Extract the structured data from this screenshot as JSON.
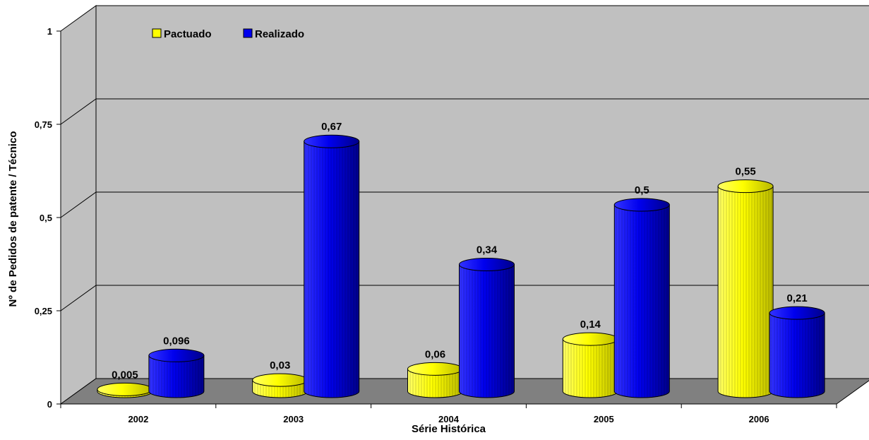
{
  "chart_data": {
    "type": "bar",
    "title": "",
    "xlabel": "Série Histórica",
    "ylabel": "Nº de Pedidos de patente / Técnico",
    "categories": [
      "2002",
      "2003",
      "2004",
      "2005",
      "2006"
    ],
    "series": [
      {
        "name": "Pactuado",
        "values": [
          0.005,
          0.03,
          0.06,
          0.14,
          0.55
        ],
        "labels": [
          "0,005",
          "0,03",
          "0,06",
          "0,14",
          "0,55"
        ]
      },
      {
        "name": "Realizado",
        "values": [
          0.096,
          0.67,
          0.34,
          0.5,
          0.21
        ],
        "labels": [
          "0,096",
          "0,67",
          "0,34",
          "0,5",
          "0,21"
        ]
      }
    ],
    "y_ticks": [
      0,
      0.25,
      0.5,
      0.75,
      1
    ],
    "y_tick_labels": [
      "0",
      "0,25",
      "0,5",
      "0,75",
      "1"
    ],
    "ylim": [
      0,
      1
    ],
    "grid": true,
    "legend_position": "top-left",
    "style": "3d-cylinder",
    "colors": {
      "Pactuado": "#ffff00",
      "Realizado": "#0000ee",
      "wall": "#c0c0c0",
      "floor": "#808080"
    }
  }
}
